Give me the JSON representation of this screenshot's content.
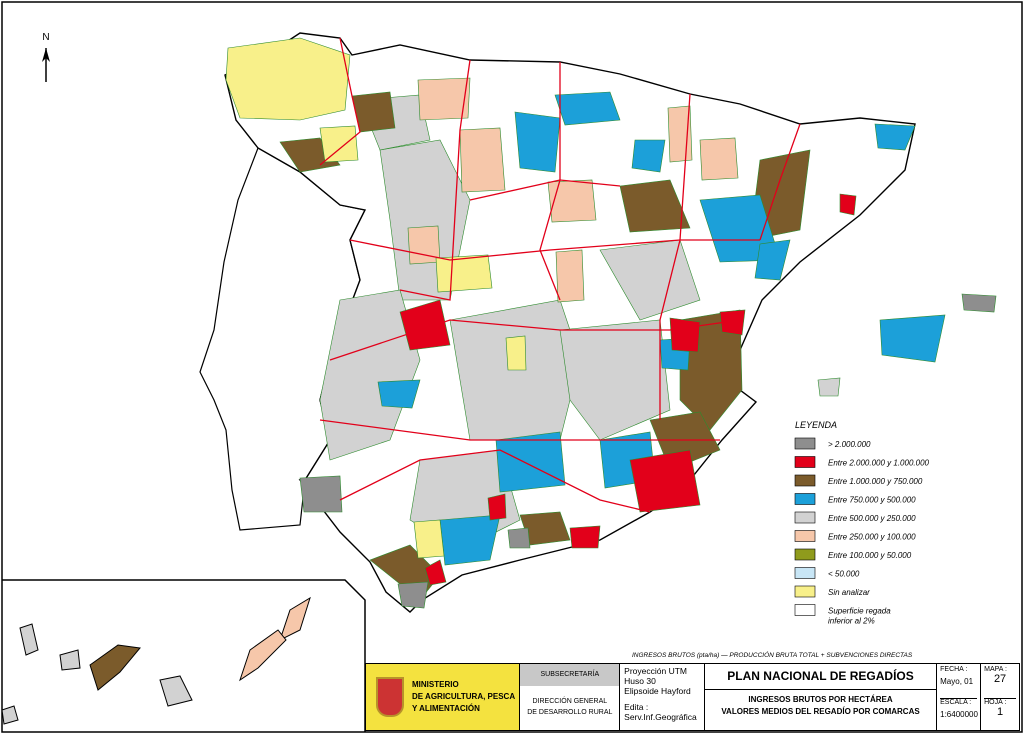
{
  "map": {
    "north": "N",
    "legend": {
      "title": "LEYENDA",
      "items": [
        {
          "label": [
            "> 2.000.000"
          ],
          "color": "#8e8e8e"
        },
        {
          "label": [
            "Entre 2.000.000 y 1.000.000"
          ],
          "color": "#e2001a"
        },
        {
          "label": [
            "Entre 1.000.000 y 750.000"
          ],
          "color": "#7b5b2b"
        },
        {
          "label": [
            "Entre 750.000 y 500.000"
          ],
          "color": "#1ca0d9"
        },
        {
          "label": [
            "Entre 500.000 y 250.000"
          ],
          "color": "#d2d2d2"
        },
        {
          "label": [
            "Entre 250.000 y 100.000"
          ],
          "color": "#f6c7aa"
        },
        {
          "label": [
            "Entre 100.000 y 50.000"
          ],
          "color": "#8f9b1c"
        },
        {
          "label": [
            "< 50.000"
          ],
          "color": "#c8e6f6"
        },
        {
          "label": [
            "Sin analizar"
          ],
          "color": "#f8f08a"
        },
        {
          "label": [
            "Superficie regada",
            "inferior al 2%"
          ],
          "color": "#ffffff"
        }
      ]
    },
    "note": "INGRESOS BRUTOS (pta/ha) — PRODUCCIÓN BRUTA TOTAL + SUBVENCIONES DIRECTAS",
    "title_block": {
      "ministry": [
        "MINISTERIO",
        "DE AGRICULTURA, PESCA",
        "Y ALIMENTACIÓN"
      ],
      "subsecretaria": "SUBSECRETARÍA",
      "direccion": [
        "DIRECCIÓN GENERAL",
        "DE DESARROLLO RURAL"
      ],
      "projection": [
        "Proyección UTM",
        "Huso 30",
        "Elipsoide Hayford"
      ],
      "edita": [
        "Edita :",
        "Serv.Inf.Geográfica"
      ],
      "plan": "PLAN NACIONAL DE REGADÍOS",
      "subtitle": [
        "INGRESOS BRUTOS POR HECTÁREA",
        "VALORES MEDIOS DEL REGADÍO POR COMARCAS"
      ],
      "fecha_label": "FECHA :",
      "fecha": "Mayo, 01",
      "mapa_label": "MAPA :",
      "mapa": "27",
      "escala_label": "ESCALA :",
      "escala": "1:6400000",
      "hoja_label": "HOJA :",
      "hoja": "1"
    }
  }
}
